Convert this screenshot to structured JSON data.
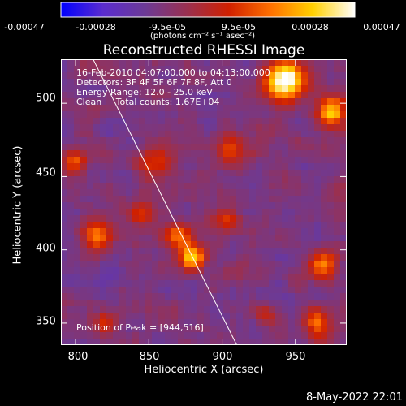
{
  "colorbar": {
    "ticks": [
      "-0.00047",
      "-0.00028",
      "-9.5e-05",
      "9.5e-05",
      "0.00028",
      "0.00047"
    ],
    "units": "(photons cm⁻² s⁻¹ asec⁻²)",
    "colors": [
      "#0000ff",
      "#5a2ccf",
      "#6c3a96",
      "#9a3050",
      "#d02000",
      "#ff7000",
      "#ffd000",
      "#ffffff"
    ]
  },
  "chart_data": {
    "type": "heatmap",
    "title": "Reconstructed RHESSI Image",
    "xlabel": "Heliocentric X (arcsec)",
    "ylabel": "Heliocentric Y (arcsec)",
    "xlim": [
      790,
      985
    ],
    "ylim": [
      335,
      530
    ],
    "xticks": [
      "800",
      "850",
      "900",
      "950"
    ],
    "yticks": [
      "350",
      "400",
      "450",
      "500"
    ],
    "annotations": [
      "16-Feb-2010 04:07:00.000 to 04:13:00.000",
      "Detectors: 3F 4F 5F 6F 7F 8F, Att 0",
      "Energy Range: 12.0 - 25.0 keV",
      "Clean     Total counts: 1.67E+04"
    ],
    "peak_label": "Position of Peak = [944,516]",
    "peak": [
      944,
      516
    ],
    "limb_line": [
      [
        812,
        530
      ],
      [
        910,
        335
      ]
    ]
  },
  "footer": {
    "date": "8-May-2022 22:01"
  }
}
